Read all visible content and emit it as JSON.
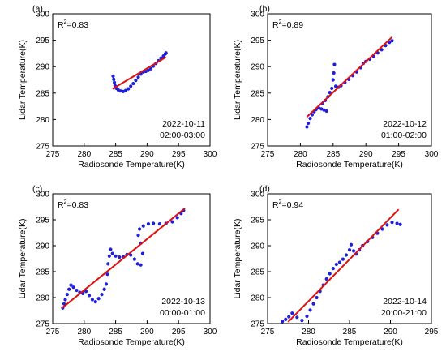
{
  "colors": {
    "points": "#1f1fdc",
    "fit_line": "#e01010",
    "axes": "#000000"
  },
  "chart_data": [
    {
      "type": "scatter",
      "panel_label": "(a)",
      "r2_label": "R",
      "r2_sup": "2",
      "r2_value": "=0.83",
      "date": "2022-10-11",
      "time": "02:00-03:00",
      "xlabel": "Radiosonde Temperature(K)",
      "ylabel": "Lidar Temperature(K)",
      "xlim": [
        275,
        300
      ],
      "ylim": [
        275,
        300
      ],
      "xticks": [
        "275",
        "280",
        "285",
        "290",
        "295",
        "300"
      ],
      "yticks": [
        "275",
        "280",
        "285",
        "290",
        "295",
        "300"
      ],
      "fit": {
        "x": [
          284.5,
          293
        ],
        "y": [
          285.8,
          291.8
        ]
      },
      "points": [
        [
          284.6,
          288.2
        ],
        [
          284.7,
          287.6
        ],
        [
          284.8,
          287.0
        ],
        [
          284.9,
          286.4
        ],
        [
          285.1,
          285.9
        ],
        [
          285.4,
          285.6
        ],
        [
          285.8,
          285.4
        ],
        [
          286.2,
          285.3
        ],
        [
          286.6,
          285.5
        ],
        [
          287.0,
          285.8
        ],
        [
          287.4,
          286.3
        ],
        [
          287.8,
          286.8
        ],
        [
          288.2,
          287.4
        ],
        [
          288.6,
          288.0
        ],
        [
          289.0,
          288.6
        ],
        [
          289.4,
          289.0
        ],
        [
          289.8,
          289.1
        ],
        [
          290.2,
          289.3
        ],
        [
          290.6,
          289.6
        ],
        [
          291.0,
          290.1
        ],
        [
          291.4,
          290.6
        ],
        [
          291.8,
          291.1
        ],
        [
          292.2,
          291.6
        ],
        [
          292.6,
          292.0
        ],
        [
          292.9,
          292.4
        ],
        [
          293.0,
          292.6
        ]
      ]
    },
    {
      "type": "scatter",
      "panel_label": "(b)",
      "r2_label": "R",
      "r2_sup": "2",
      "r2_value": "=0.89",
      "date": "2022-10-12",
      "time": "01:00-02:00",
      "xlabel": "Radiosonde Temperature(K)",
      "ylabel": "Lidar Temperature(K)",
      "xlim": [
        275,
        300
      ],
      "ylim": [
        275,
        300
      ],
      "xticks": [
        "275",
        "280",
        "285",
        "290",
        "295",
        "300"
      ],
      "yticks": [
        "275",
        "280",
        "285",
        "290",
        "295",
        "300"
      ],
      "fit": {
        "x": [
          281,
          294
        ],
        "y": [
          280.5,
          295.6
        ]
      },
      "points": [
        [
          281.0,
          278.6
        ],
        [
          281.2,
          279.3
        ],
        [
          281.5,
          280.2
        ],
        [
          281.8,
          280.9
        ],
        [
          282.1,
          281.5
        ],
        [
          282.4,
          281.9
        ],
        [
          282.8,
          282.2
        ],
        [
          283.2,
          282.0
        ],
        [
          283.6,
          281.8
        ],
        [
          284.0,
          281.6
        ],
        [
          283.4,
          283.0
        ],
        [
          283.8,
          283.6
        ],
        [
          284.2,
          284.3
        ],
        [
          284.5,
          285.1
        ],
        [
          284.8,
          285.9
        ],
        [
          285.0,
          287.5
        ],
        [
          285.1,
          288.8
        ],
        [
          285.2,
          290.4
        ],
        [
          285.4,
          286.3
        ],
        [
          285.8,
          286.1
        ],
        [
          286.2,
          286.4
        ],
        [
          286.8,
          287.0
        ],
        [
          287.4,
          287.6
        ],
        [
          288.0,
          288.3
        ],
        [
          288.6,
          289.0
        ],
        [
          289.2,
          289.8
        ],
        [
          289.6,
          290.6
        ],
        [
          290.0,
          291.0
        ],
        [
          290.6,
          291.4
        ],
        [
          291.2,
          291.9
        ],
        [
          291.8,
          292.6
        ],
        [
          292.4,
          293.2
        ],
        [
          293.0,
          294.0
        ],
        [
          293.6,
          294.6
        ],
        [
          294.0,
          294.9
        ]
      ]
    },
    {
      "type": "scatter",
      "panel_label": "(c)",
      "r2_label": "R",
      "r2_sup": "2",
      "r2_value": "=0.83",
      "date": "2022-10-13",
      "time": "00:00-01:00",
      "xlabel": "Radiosonde Temperature(K)",
      "ylabel": "Lidar Temperature(K)",
      "xlim": [
        275,
        300
      ],
      "ylim": [
        275,
        300
      ],
      "xticks": [
        "275",
        "280",
        "285",
        "290",
        "295",
        "300"
      ],
      "yticks": [
        "275",
        "280",
        "285",
        "290",
        "295",
        "300"
      ],
      "fit": {
        "x": [
          276.5,
          296
        ],
        "y": [
          278.0,
          297.2
        ]
      },
      "points": [
        [
          276.6,
          278.0
        ],
        [
          276.8,
          278.8
        ],
        [
          277.0,
          279.6
        ],
        [
          277.3,
          280.6
        ],
        [
          277.6,
          281.6
        ],
        [
          277.9,
          282.4
        ],
        [
          278.3,
          282.0
        ],
        [
          278.8,
          281.4
        ],
        [
          279.3,
          281.0
        ],
        [
          279.8,
          280.8
        ],
        [
          280.3,
          281.2
        ],
        [
          280.8,
          280.4
        ],
        [
          281.3,
          279.6
        ],
        [
          281.8,
          279.2
        ],
        [
          282.3,
          279.8
        ],
        [
          282.8,
          280.6
        ],
        [
          283.2,
          281.6
        ],
        [
          283.5,
          282.6
        ],
        [
          283.7,
          284.5
        ],
        [
          283.8,
          286.5
        ],
        [
          284.0,
          288.0
        ],
        [
          284.2,
          289.3
        ],
        [
          284.5,
          288.5
        ],
        [
          285.0,
          288.0
        ],
        [
          285.6,
          287.8
        ],
        [
          286.2,
          287.9
        ],
        [
          286.8,
          288.3
        ],
        [
          287.4,
          288.2
        ],
        [
          288.0,
          287.4
        ],
        [
          288.5,
          286.5
        ],
        [
          289.0,
          286.3
        ],
        [
          289.3,
          288.5
        ],
        [
          289.0,
          290.5
        ],
        [
          288.6,
          292.0
        ],
        [
          288.8,
          293.2
        ],
        [
          289.4,
          293.8
        ],
        [
          290.2,
          294.2
        ],
        [
          291.0,
          294.3
        ],
        [
          292.0,
          294.2
        ],
        [
          293.0,
          294.3
        ],
        [
          294.0,
          294.6
        ],
        [
          294.8,
          295.4
        ],
        [
          295.4,
          296.2
        ],
        [
          295.8,
          296.8
        ]
      ]
    },
    {
      "type": "scatter",
      "panel_label": "(d)",
      "r2_label": "R",
      "r2_sup": "2",
      "r2_value": "=0.94",
      "date": "2022-10-14",
      "time": "20:00-21:00",
      "xlabel": "Radiosonde Temperature(K)",
      "ylabel": "Lidar Temperature(K)",
      "xlim": [
        275,
        295
      ],
      "ylim": [
        275,
        300
      ],
      "xticks": [
        "275",
        "280",
        "285",
        "290",
        "295"
      ],
      "yticks": [
        "275",
        "280",
        "285",
        "290",
        "295",
        "300"
      ],
      "fit": {
        "x": [
          277.5,
          291
        ],
        "y": [
          275.3,
          297.0
        ]
      },
      "points": [
        [
          276.8,
          275.4
        ],
        [
          277.2,
          275.8
        ],
        [
          277.6,
          276.3
        ],
        [
          278.0,
          277.0
        ],
        [
          278.6,
          276.2
        ],
        [
          279.2,
          275.6
        ],
        [
          279.8,
          276.4
        ],
        [
          280.2,
          277.6
        ],
        [
          280.6,
          278.8
        ],
        [
          281.0,
          280.0
        ],
        [
          281.4,
          281.2
        ],
        [
          281.8,
          282.4
        ],
        [
          282.2,
          283.6
        ],
        [
          282.6,
          284.6
        ],
        [
          283.0,
          285.6
        ],
        [
          283.4,
          286.4
        ],
        [
          283.8,
          286.8
        ],
        [
          284.2,
          287.4
        ],
        [
          284.6,
          288.2
        ],
        [
          285.0,
          289.2
        ],
        [
          285.2,
          290.2
        ],
        [
          285.5,
          289.0
        ],
        [
          285.8,
          288.4
        ],
        [
          286.2,
          289.2
        ],
        [
          286.6,
          290.0
        ],
        [
          287.2,
          290.8
        ],
        [
          287.8,
          291.6
        ],
        [
          288.4,
          292.4
        ],
        [
          289.0,
          293.2
        ],
        [
          289.6,
          294.0
        ],
        [
          290.2,
          294.5
        ],
        [
          290.8,
          294.3
        ],
        [
          291.2,
          294.1
        ]
      ]
    }
  ]
}
